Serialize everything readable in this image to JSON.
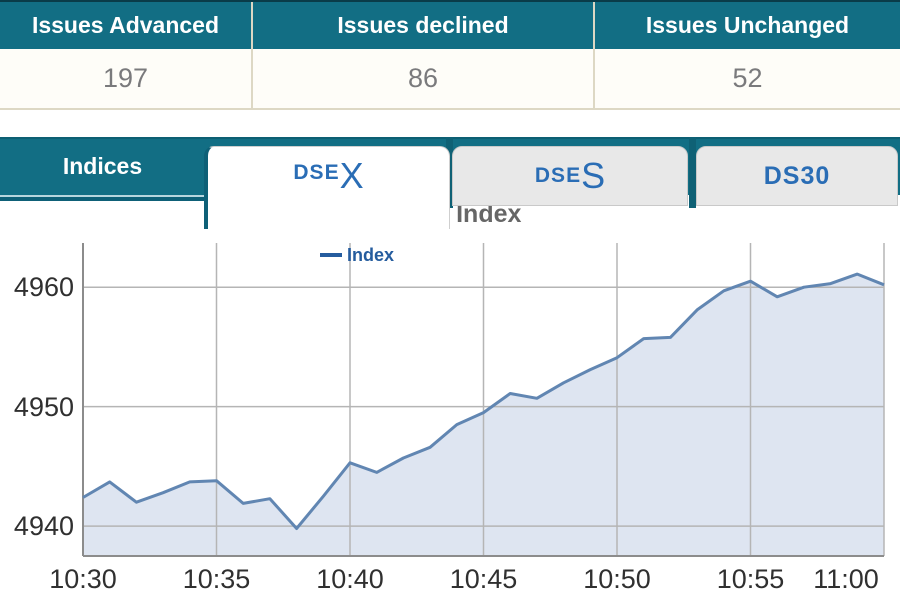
{
  "summary_table": {
    "columns": [
      {
        "label": "Issues Advanced",
        "value": "197"
      },
      {
        "label": "Issues declined",
        "value": "86"
      },
      {
        "label": "Issues Unchanged",
        "value": "52"
      }
    ]
  },
  "tabs": {
    "section_label": "Indices",
    "items": [
      {
        "prefix": "DSE",
        "suffix": "X",
        "active": true
      },
      {
        "prefix": "DSE",
        "suffix": "S",
        "active": false
      },
      {
        "prefix": "DS30",
        "suffix": "",
        "active": false
      }
    ]
  },
  "chart_data": {
    "type": "area",
    "title": "DSE Broad Index",
    "legend": "Index",
    "legend_position": "top-center",
    "grid": true,
    "x": [
      "10:30",
      "10:31",
      "10:32",
      "10:33",
      "10:34",
      "10:35",
      "10:36",
      "10:37",
      "10:38",
      "10:39",
      "10:40",
      "10:41",
      "10:42",
      "10:43",
      "10:44",
      "10:45",
      "10:46",
      "10:47",
      "10:48",
      "10:49",
      "10:50",
      "10:51",
      "10:52",
      "10:53",
      "10:54",
      "10:55",
      "10:56",
      "10:57",
      "10:58",
      "10:59",
      "11:00"
    ],
    "values": [
      4942.4,
      4943.7,
      4942.0,
      4942.8,
      4943.7,
      4943.8,
      4941.9,
      4942.3,
      4939.8,
      4942.5,
      4945.3,
      4944.5,
      4945.7,
      4946.6,
      4948.5,
      4949.5,
      4951.1,
      4950.7,
      4952.0,
      4953.1,
      4954.1,
      4955.7,
      4955.8,
      4958.1,
      4959.7,
      4960.5,
      4959.2,
      4960.0,
      4960.3,
      4961.1,
      4960.2
    ],
    "x_tick_labels": [
      "10:30",
      "10:35",
      "10:40",
      "10:45",
      "10:50",
      "10:55",
      "11:00"
    ],
    "y_ticks": [
      4940,
      4950,
      4960
    ],
    "ylim": [
      4937.5,
      4963.7
    ],
    "colors": {
      "line": "#6186b2",
      "fill": "#dee5f1",
      "grid": "#b5b5b5",
      "axis": "#8c8c8c"
    }
  },
  "colors": {
    "teal": "#126e84",
    "teal_dark": "#0e6077",
    "table_border": "#ddd8c4",
    "tab_text_blue": "#2a6db5",
    "value_text": "#7a7a7c",
    "title_gray": "#666666",
    "legend_blue": "#255c9e"
  }
}
